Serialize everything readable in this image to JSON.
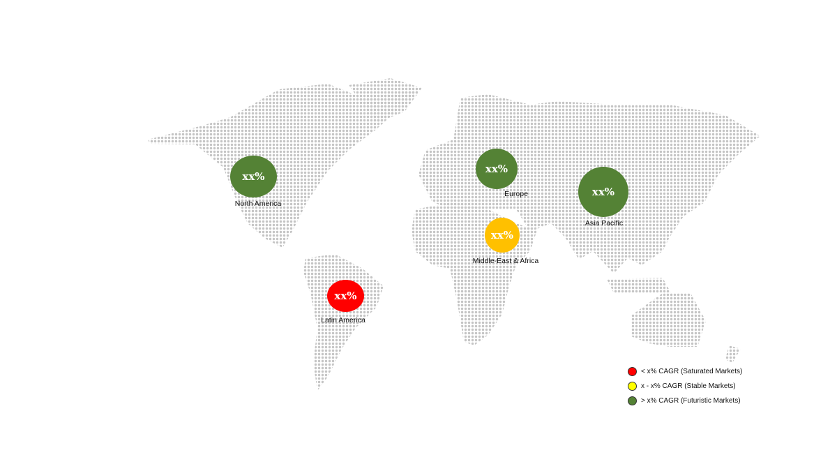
{
  "colors": {
    "map_dots": "#c4c4c4",
    "saturated": "#ff0000",
    "stable": "#ffc000",
    "futuristic": "#548235",
    "legend_stable": "#ffff00"
  },
  "regions": [
    {
      "name": "North America",
      "value": "xx%",
      "category": "futuristic"
    },
    {
      "name": "Europe",
      "value": "xx%",
      "category": "futuristic"
    },
    {
      "name": "Asia Pacific",
      "value": "xx%",
      "category": "futuristic"
    },
    {
      "name": "Middle-East & Africa",
      "value": "xx%",
      "category": "stable"
    },
    {
      "name": "Latin America",
      "value": "xx%",
      "category": "saturated"
    }
  ],
  "legend": [
    {
      "label": "< x% CAGR (Saturated Markets)",
      "color": "#ff0000"
    },
    {
      "label": "x - x% CAGR (Stable Markets)",
      "color": "#ffff00"
    },
    {
      "label": "> x% CAGR (Futuristic Markets)",
      "color": "#548235"
    }
  ]
}
